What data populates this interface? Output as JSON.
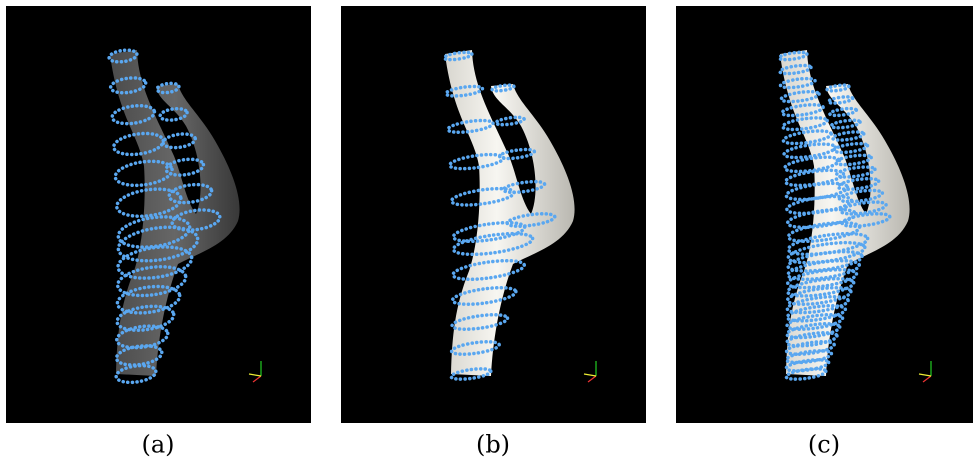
{
  "panels": [
    {
      "label": "(a)"
    },
    {
      "label": "(b)"
    },
    {
      "label": "(c)"
    }
  ]
}
